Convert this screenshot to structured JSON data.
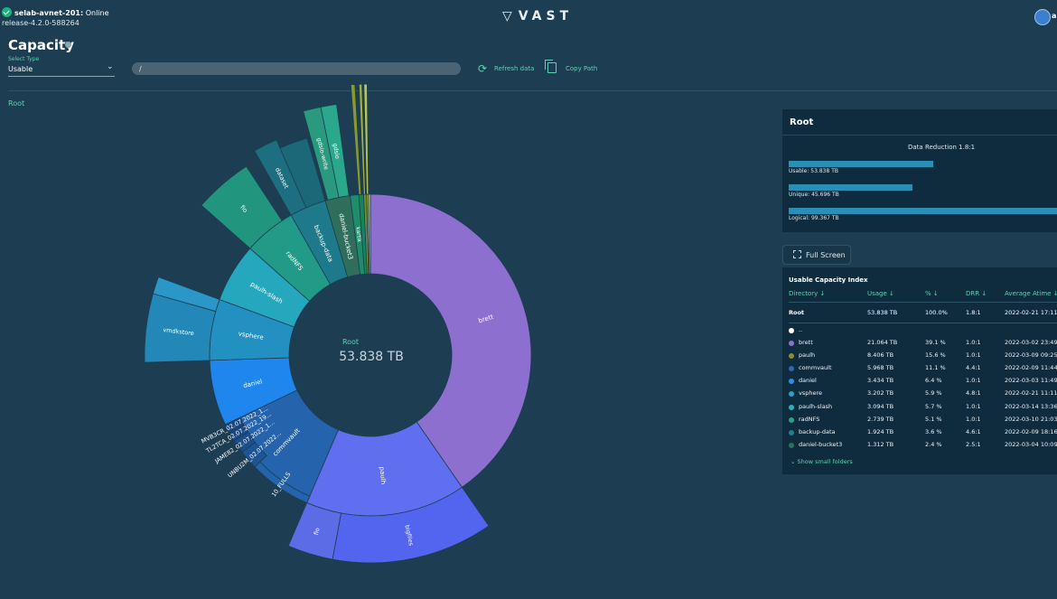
{
  "header": {
    "cluster_name": "selab-avnet-201:",
    "cluster_status": "Online",
    "release": "release-4.2.0-588264",
    "logo_text": "VAST",
    "user": "a"
  },
  "toolbar": {
    "page_title": "Capacity",
    "select_caption": "Select Type",
    "select_value": "Usable",
    "path_value": "/",
    "refresh_label": "Refresh data",
    "copy_label": "Copy Path"
  },
  "breadcrumb": "Root",
  "center": {
    "label": "Root",
    "value": "53.838 TB"
  },
  "root_card": {
    "title": "Root",
    "data_reduction": "Data Reduction 1.8:1",
    "usable": {
      "label": "Usable: 53.838 TB",
      "fraction": 0.54
    },
    "unique": {
      "label": "Unique: 45.696 TB",
      "fraction": 0.46
    },
    "logical": {
      "label": "Logical: 99.367 TB",
      "fraction": 1.0
    }
  },
  "full_screen_label": "Full Screen",
  "index": {
    "title": "Usable Capacity Index",
    "headers": [
      "Directory",
      "Usage",
      "%",
      "DRR",
      "Average Atime"
    ],
    "root_row": [
      "Root",
      "53.838 TB",
      "100.0%",
      "1.8:1",
      "2022-02-21 17:11"
    ],
    "parent_row": "..",
    "rows": [
      {
        "name": "brett",
        "usage": "21.064 TB",
        "pct": "39.1 %",
        "drr": "1.0:1",
        "atime": "2022-03-02 23:49",
        "color": "#8d6fd0"
      },
      {
        "name": "paulh",
        "usage": "8.406 TB",
        "pct": "15.6 %",
        "drr": "1.0:1",
        "atime": "2022-03-09 09:25",
        "color": "#8a8d2e"
      },
      {
        "name": "commvault",
        "usage": "5.968 TB",
        "pct": "11.1 %",
        "drr": "4.4:1",
        "atime": "2022-02-09 11:44",
        "color": "#2d6ab0"
      },
      {
        "name": "daniel",
        "usage": "3.434 TB",
        "pct": "6.4 %",
        "drr": "1.0:1",
        "atime": "2022-03-03 11:49",
        "color": "#2b8fe6"
      },
      {
        "name": "vsphere",
        "usage": "3.202 TB",
        "pct": "5.9 %",
        "drr": "4.8:1",
        "atime": "2022-02-21 11:11",
        "color": "#2ba0cc"
      },
      {
        "name": "paulh-slash",
        "usage": "3.094 TB",
        "pct": "5.7 %",
        "drr": "1.0:1",
        "atime": "2022-03-14 13:36",
        "color": "#2ab1c0"
      },
      {
        "name": "radNFS",
        "usage": "2.739 TB",
        "pct": "5.1 %",
        "drr": "1.0:1",
        "atime": "2022-03-10 21:03",
        "color": "#27a28a"
      },
      {
        "name": "backup-data",
        "usage": "1.924 TB",
        "pct": "3.6 %",
        "drr": "4.6:1",
        "atime": "2022-02-09 18:16",
        "color": "#1e8190"
      },
      {
        "name": "daniel-bucket3",
        "usage": "1.312 TB",
        "pct": "2.4 %",
        "drr": "2.5:1",
        "atime": "2022-03-04 10:09",
        "color": "#2f6e5a"
      }
    ],
    "show_small": "Show small folders"
  },
  "sunburst": {
    "root_total": 53.838,
    "inner": [
      {
        "name": "brett",
        "value": 21.064,
        "color": "#8d6fd0"
      },
      {
        "name": "paulh",
        "value": 8.406,
        "color": "#5f6ff0"
      },
      {
        "name": "commvault",
        "value": 5.968,
        "color": "#2563ad"
      },
      {
        "name": "daniel",
        "value": 3.434,
        "color": "#1f86ee"
      },
      {
        "name": "vsphere",
        "value": 3.202,
        "color": "#2390c2"
      },
      {
        "name": "paulh-slash",
        "value": 3.094,
        "color": "#25a8bd"
      },
      {
        "name": "radNFS",
        "value": 2.739,
        "color": "#229a88"
      },
      {
        "name": "backup-data",
        "value": 1.924,
        "color": "#1e7a8a"
      },
      {
        "name": "daniel-bucket3",
        "value": 1.312,
        "color": "#2f6e5a"
      },
      {
        "name": "kartik",
        "value": 0.45,
        "color": "#1e8e6a"
      },
      {
        "name": "",
        "value": 0.25,
        "color": "#14875a"
      },
      {
        "name": "",
        "value": 0.15,
        "color": "#7e8a2a"
      },
      {
        "name": "",
        "value": 0.1,
        "color": "#9aa83a"
      },
      {
        "name": "",
        "value": 0.1,
        "color": "#c3cf62"
      }
    ],
    "outer_labels": [
      "bigfiles",
      "fio",
      "10_FULLS",
      "UNBU2M_02.07.2022...",
      "JAME82_02.07.2022_1...",
      "TL2TCA_02.07.2022_19...",
      "MVB3CR_02.07.2022_1...",
      "vmdkstore",
      "dataset",
      "fio",
      "gdsio-write",
      "gdsio"
    ]
  }
}
